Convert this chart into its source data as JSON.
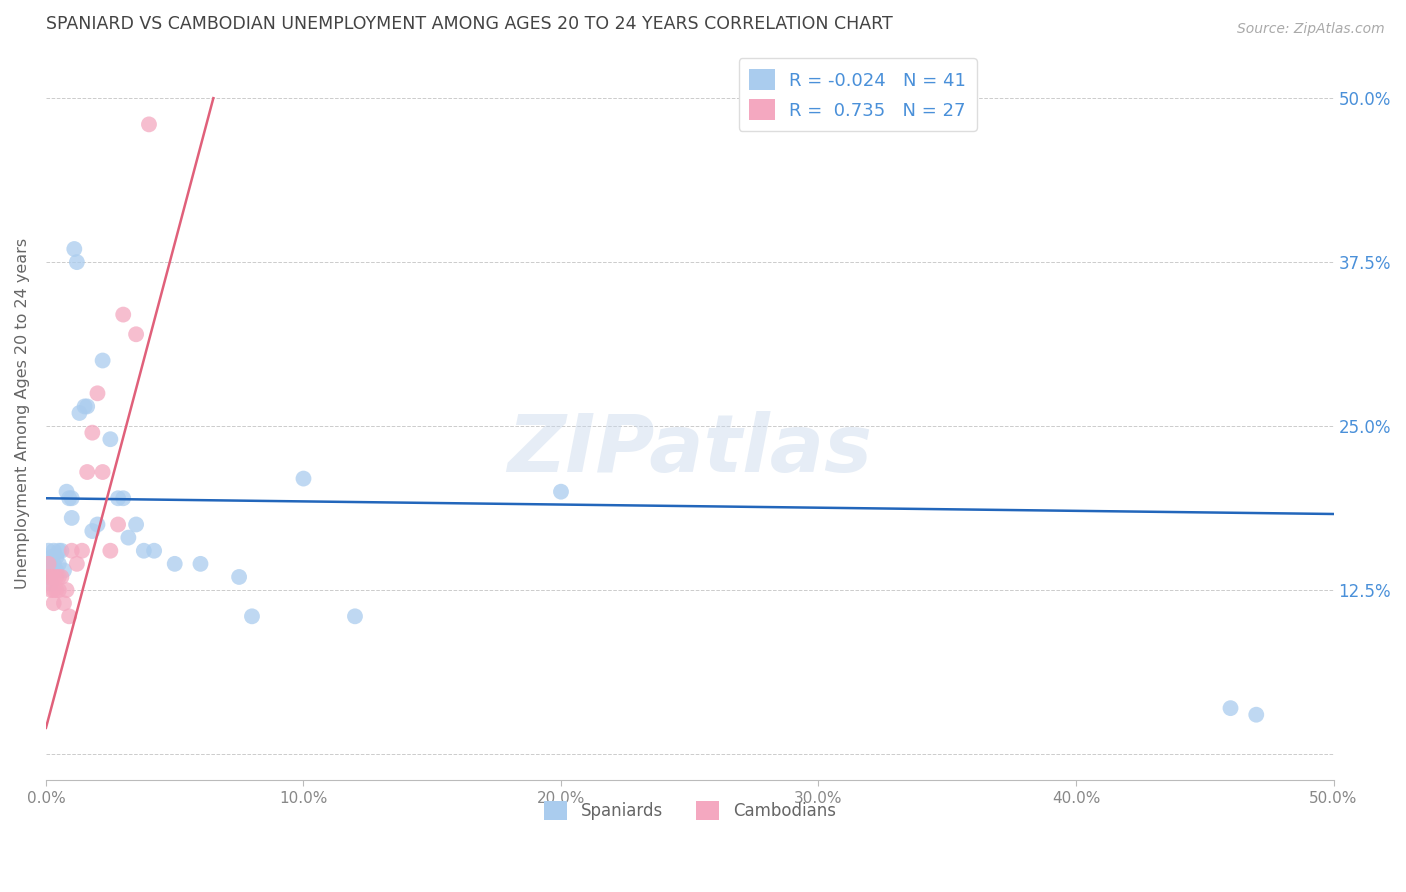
{
  "title": "SPANIARD VS CAMBODIAN UNEMPLOYMENT AMONG AGES 20 TO 24 YEARS CORRELATION CHART",
  "source": "Source: ZipAtlas.com",
  "ylabel": "Unemployment Among Ages 20 to 24 years",
  "xlim": [
    0,
    0.5
  ],
  "ylim": [
    -0.02,
    0.54
  ],
  "spaniards_x": [
    0.001,
    0.001,
    0.002,
    0.002,
    0.002,
    0.003,
    0.003,
    0.004,
    0.004,
    0.005,
    0.005,
    0.006,
    0.007,
    0.008,
    0.009,
    0.01,
    0.01,
    0.011,
    0.012,
    0.013,
    0.015,
    0.016,
    0.018,
    0.02,
    0.022,
    0.025,
    0.028,
    0.03,
    0.032,
    0.035,
    0.038,
    0.042,
    0.05,
    0.06,
    0.075,
    0.08,
    0.1,
    0.12,
    0.2,
    0.46,
    0.47
  ],
  "spaniards_y": [
    0.155,
    0.145,
    0.15,
    0.14,
    0.13,
    0.155,
    0.145,
    0.15,
    0.14,
    0.155,
    0.145,
    0.155,
    0.14,
    0.2,
    0.195,
    0.18,
    0.195,
    0.385,
    0.375,
    0.26,
    0.265,
    0.265,
    0.17,
    0.175,
    0.3,
    0.24,
    0.195,
    0.195,
    0.165,
    0.175,
    0.155,
    0.155,
    0.145,
    0.145,
    0.135,
    0.105,
    0.21,
    0.105,
    0.2,
    0.035,
    0.03
  ],
  "cambodians_x": [
    0.001,
    0.001,
    0.002,
    0.002,
    0.003,
    0.003,
    0.003,
    0.004,
    0.004,
    0.005,
    0.005,
    0.006,
    0.007,
    0.008,
    0.009,
    0.01,
    0.012,
    0.014,
    0.016,
    0.018,
    0.02,
    0.022,
    0.025,
    0.028,
    0.03,
    0.035,
    0.04
  ],
  "cambodians_y": [
    0.145,
    0.135,
    0.135,
    0.125,
    0.135,
    0.125,
    0.115,
    0.135,
    0.125,
    0.135,
    0.125,
    0.135,
    0.115,
    0.125,
    0.105,
    0.155,
    0.145,
    0.155,
    0.215,
    0.245,
    0.275,
    0.215,
    0.155,
    0.175,
    0.335,
    0.32,
    0.48
  ],
  "spaniard_color": "#aaccee",
  "cambodian_color": "#f4a8c0",
  "spaniard_line_color": "#2266bb",
  "cambodian_line_color": "#e0607a",
  "background_color": "#ffffff",
  "grid_color": "#cccccc",
  "title_color": "#444444",
  "axis_label_color": "#666666",
  "ytick_color": "#4a90d9",
  "xtick_color": "#888888",
  "watermark": "ZIPatlas"
}
